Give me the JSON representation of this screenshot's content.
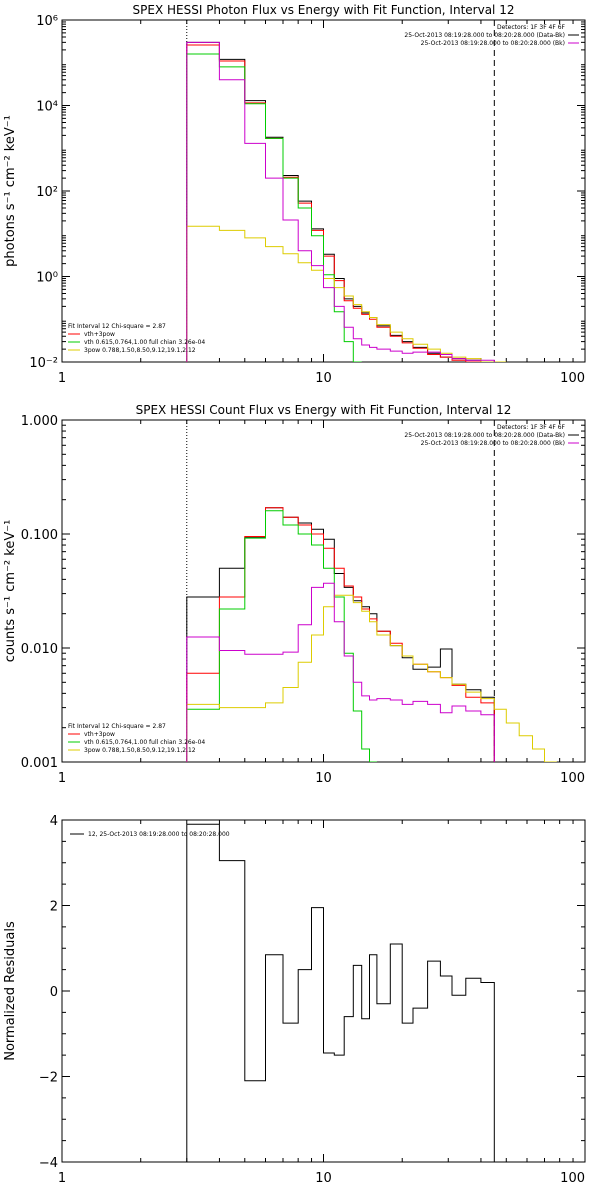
{
  "colors": {
    "data": "#000000",
    "vth+3pow": "#ff0000",
    "vth": "#00cc00",
    "3pow": "#ddcc00",
    "background": "#cc00cc",
    "axes": "#000000"
  },
  "chart_data": [
    {
      "type": "line",
      "title": "SPEX HESSI Photon Flux vs Energy with Fit Function, Interval 12",
      "xlabel": "",
      "ylabel": "photons s⁻¹ cm⁻² keV⁻¹",
      "xscale": "log",
      "yscale": "log",
      "xlim": [
        1,
        100
      ],
      "ylim": [
        0.01,
        1000000
      ],
      "xticks": [
        1,
        10,
        100
      ],
      "xtick_labels": [
        "1",
        "10",
        "100"
      ],
      "yticks": [
        0.01,
        1,
        100,
        10000,
        1000000
      ],
      "ytick_labels": [
        "10⁻²",
        "10⁰",
        "10²",
        "10⁴",
        "10⁶"
      ],
      "vlines": [
        {
          "x": 3,
          "style": "dotted"
        },
        {
          "x": 45,
          "style": "dashed"
        }
      ],
      "legend_topright": [
        "Detectors: 1F 3F 4F 6F",
        "25-Oct-2013 08:19:28.000 to 08:20:28.000 (Data-Bk)",
        "25-Oct-2013 08:19:28.000 to 08:20:28.000 (Bk)"
      ],
      "legend_bottomleft": [
        "Fit Interval 12   Chi-square = 2.87",
        "vth+3pow",
        "vth 0.615,0.764,1.00  full chian 3.26e-04",
        "3pow 0.788,1.50,8.50,9.12,19.1,2.12"
      ],
      "edges": [
        3,
        4,
        5,
        6,
        7,
        8,
        9,
        10,
        11,
        12,
        13,
        14,
        15,
        16,
        18,
        20,
        22,
        25,
        28,
        31,
        35,
        40,
        45,
        50
      ],
      "series": [
        {
          "name": "data",
          "color_key": "data",
          "values": [
            300000,
            120000,
            13000,
            1800,
            230,
            58,
            13,
            3.3,
            0.9,
            0.3,
            0.2,
            0.14,
            0.11,
            0.07,
            0.042,
            0.03,
            0.022,
            0.016,
            0.013,
            0.012,
            0.011,
            0.01
          ]
        },
        {
          "name": "vth+3pow",
          "color_key": "vth+3pow",
          "values": [
            260000,
            110000,
            11500,
            1700,
            210,
            52,
            12,
            3,
            0.8,
            0.27,
            0.18,
            0.13,
            0.1,
            0.065,
            0.04,
            0.028,
            0.021,
            0.015,
            0.013,
            0.011,
            0.01,
            0.009
          ]
        },
        {
          "name": "vth",
          "color_key": "vth",
          "values": [
            160000,
            80000,
            11000,
            1700,
            200,
            40,
            9,
            1.1,
            0.15,
            0.03,
            0.01
          ]
        },
        {
          "name": "3pow",
          "color_key": "3pow",
          "values": [
            15,
            12,
            8,
            5,
            3.4,
            2.1,
            1.4,
            0.9,
            0.55,
            0.35,
            0.22,
            0.15,
            0.11,
            0.075,
            0.05,
            0.035,
            0.026,
            0.02,
            0.016,
            0.013,
            0.012,
            0.009,
            0.008
          ]
        },
        {
          "name": "Bk",
          "color_key": "background",
          "values": [
            300000,
            40000,
            1300,
            200,
            21,
            4,
            1.8,
            0.55,
            0.2,
            0.065,
            0.035,
            0.025,
            0.022,
            0.02,
            0.018,
            0.016,
            0.017,
            0.017,
            0.015,
            0.012,
            0.011,
            0.011
          ]
        }
      ]
    },
    {
      "type": "line",
      "title": "SPEX HESSI Count Flux vs Energy with Fit Function, Interval 12",
      "xlabel": "",
      "ylabel": "counts s⁻¹ cm⁻² keV⁻¹",
      "xscale": "log",
      "yscale": "log",
      "xlim": [
        1,
        100
      ],
      "ylim": [
        0.001,
        1
      ],
      "xticks": [
        1,
        10,
        100
      ],
      "xtick_labels": [
        "1",
        "10",
        "100"
      ],
      "yticks": [
        0.001,
        0.01,
        0.1,
        1
      ],
      "ytick_labels": [
        "0.001",
        "0.010",
        "0.100",
        "1.000"
      ],
      "vlines": [
        {
          "x": 3,
          "style": "dotted"
        },
        {
          "x": 45,
          "style": "dashed"
        }
      ],
      "legend_topright": [
        "Detectors: 1F 3F 4F 6F",
        "25-Oct-2013 08:19:28.000 to 08:20:28.000 (Data-Bk)",
        "25-Oct-2013 08:19:28.000 to 08:20:28.000 (Bk)"
      ],
      "legend_bottomleft": [
        "Fit Interval 12   Chi-square = 2.87",
        "vth+3pow",
        "vth 0.615,0.764,1.00  full chian 3.26e-04",
        "3pow 0.788,1.50,8.50,9.12,19.1,2.12"
      ],
      "edges": [
        3,
        4,
        5,
        6,
        7,
        8,
        9,
        10,
        11,
        12,
        13,
        14,
        15,
        16,
        18,
        20,
        22,
        25,
        28,
        31,
        35,
        40,
        45,
        50,
        56,
        63,
        70,
        78
      ],
      "series": [
        {
          "name": "data",
          "color_key": "data",
          "values": [
            0.028,
            0.05,
            0.093,
            0.17,
            0.14,
            0.125,
            0.11,
            0.09,
            0.045,
            0.034,
            0.026,
            0.023,
            0.02,
            0.014,
            0.0105,
            0.0082,
            0.0065,
            0.0068,
            0.0098,
            0.0048,
            0.0043,
            0.0037
          ]
        },
        {
          "name": "vth+3pow",
          "color_key": "vth+3pow",
          "values": [
            0.006,
            0.028,
            0.095,
            0.17,
            0.14,
            0.12,
            0.1,
            0.075,
            0.05,
            0.035,
            0.028,
            0.022,
            0.018,
            0.014,
            0.011,
            0.0085,
            0.0072,
            0.0062,
            0.0055,
            0.0047,
            0.0037,
            0.0033
          ]
        },
        {
          "name": "vth",
          "color_key": "vth",
          "values": [
            0.0029,
            0.022,
            0.092,
            0.16,
            0.12,
            0.1,
            0.08,
            0.05,
            0.028,
            0.009,
            0.0028,
            0.0013,
            0.0009
          ]
        },
        {
          "name": "3pow",
          "color_key": "3pow",
          "values": [
            0.0032,
            0.003,
            0.003,
            0.0033,
            0.0045,
            0.0075,
            0.013,
            0.023,
            0.029,
            0.029,
            0.025,
            0.021,
            0.017,
            0.013,
            0.0105,
            0.0085,
            0.0072,
            0.0062,
            0.0055,
            0.0048,
            0.0041,
            0.0036,
            0.0029,
            0.0022,
            0.0017,
            0.0013,
            0.001
          ]
        },
        {
          "name": "Bk",
          "color_key": "background",
          "values": [
            0.0125,
            0.0095,
            0.0088,
            0.0088,
            0.0092,
            0.016,
            0.034,
            0.037,
            0.017,
            0.0085,
            0.005,
            0.0038,
            0.0035,
            0.0036,
            0.0035,
            0.0032,
            0.0034,
            0.0032,
            0.0027,
            0.0031,
            0.0028,
            0.0026
          ]
        }
      ]
    },
    {
      "type": "line",
      "title": "",
      "xlabel": "",
      "ylabel": "Normalized Residuals",
      "xscale": "log",
      "yscale": "linear",
      "xlim": [
        1,
        100
      ],
      "ylim": [
        -4,
        4
      ],
      "xticks": [
        1,
        10,
        100
      ],
      "xtick_labels": [
        "1",
        "10",
        "100"
      ],
      "yticks": [
        -4,
        -2,
        0,
        2,
        4
      ],
      "ytick_labels": [
        "−4",
        "−2",
        "0",
        "2",
        "4"
      ],
      "vlines": [],
      "legend_topleft": [
        "12, 25-Oct-2013 08:19:28.000 to 08:20:28.000"
      ],
      "edges": [
        3,
        4,
        5,
        6,
        7,
        8,
        9,
        10,
        11,
        12,
        13,
        14,
        15,
        16,
        18,
        20,
        22,
        25,
        28,
        31,
        35,
        40,
        45
      ],
      "series": [
        {
          "name": "residuals",
          "color_key": "data",
          "values": [
            3.9,
            3.05,
            -2.1,
            0.85,
            -0.75,
            0.5,
            1.95,
            -1.45,
            -1.5,
            -0.6,
            0.6,
            -0.65,
            0.85,
            -0.3,
            1.1,
            -0.75,
            -0.4,
            0.7,
            0.35,
            -0.1,
            0.3,
            0.2
          ]
        }
      ]
    }
  ]
}
